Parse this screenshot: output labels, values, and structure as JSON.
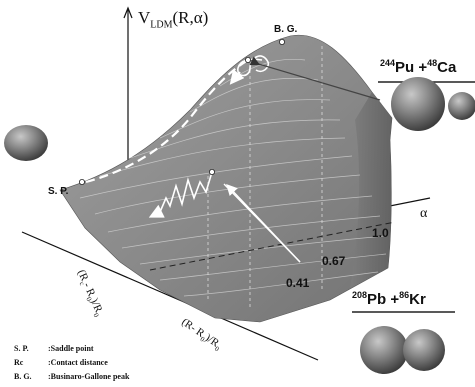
{
  "axis": {
    "v_label": "V",
    "v_sub": "LDM",
    "v_args": "(R,α)",
    "alpha_label": "α",
    "alpha_ticks": [
      "1.0",
      "0.67",
      "0.41"
    ],
    "x_label_1": "(R",
    "x_sub_1": "c",
    "x_label_2": "- R",
    "x_sub_2": "0",
    "x_label_3": ")/R",
    "x_sub_3": "0",
    "y_label_1": "(R- R",
    "y_sub_1": "0",
    "y_label_2": ")/R",
    "y_sub_2": "0"
  },
  "points": {
    "bg": "B. G.",
    "sp": "S. P."
  },
  "reactions": {
    "top": {
      "a1": "244",
      "el1": "Pu",
      "a2": "48",
      "el2": "Ca"
    },
    "bottom": {
      "a1": "208",
      "el1": "Pb",
      "a2": "86",
      "el2": "Kr"
    }
  },
  "legend": [
    {
      "abbr": "S. P.",
      "sep": ": ",
      "text": "Saddle point"
    },
    {
      "abbr": "Rc",
      "sep": ": ",
      "text": "Contact distance"
    },
    {
      "abbr": "B. G.",
      "sep": ": ",
      "text": "Businaro-Gallone peak"
    }
  ],
  "colors": {
    "surface": "#8c8c8c",
    "surface_dark": "#6e6e6e",
    "sphere": "#7a7a7a",
    "path": "#ffffff"
  }
}
